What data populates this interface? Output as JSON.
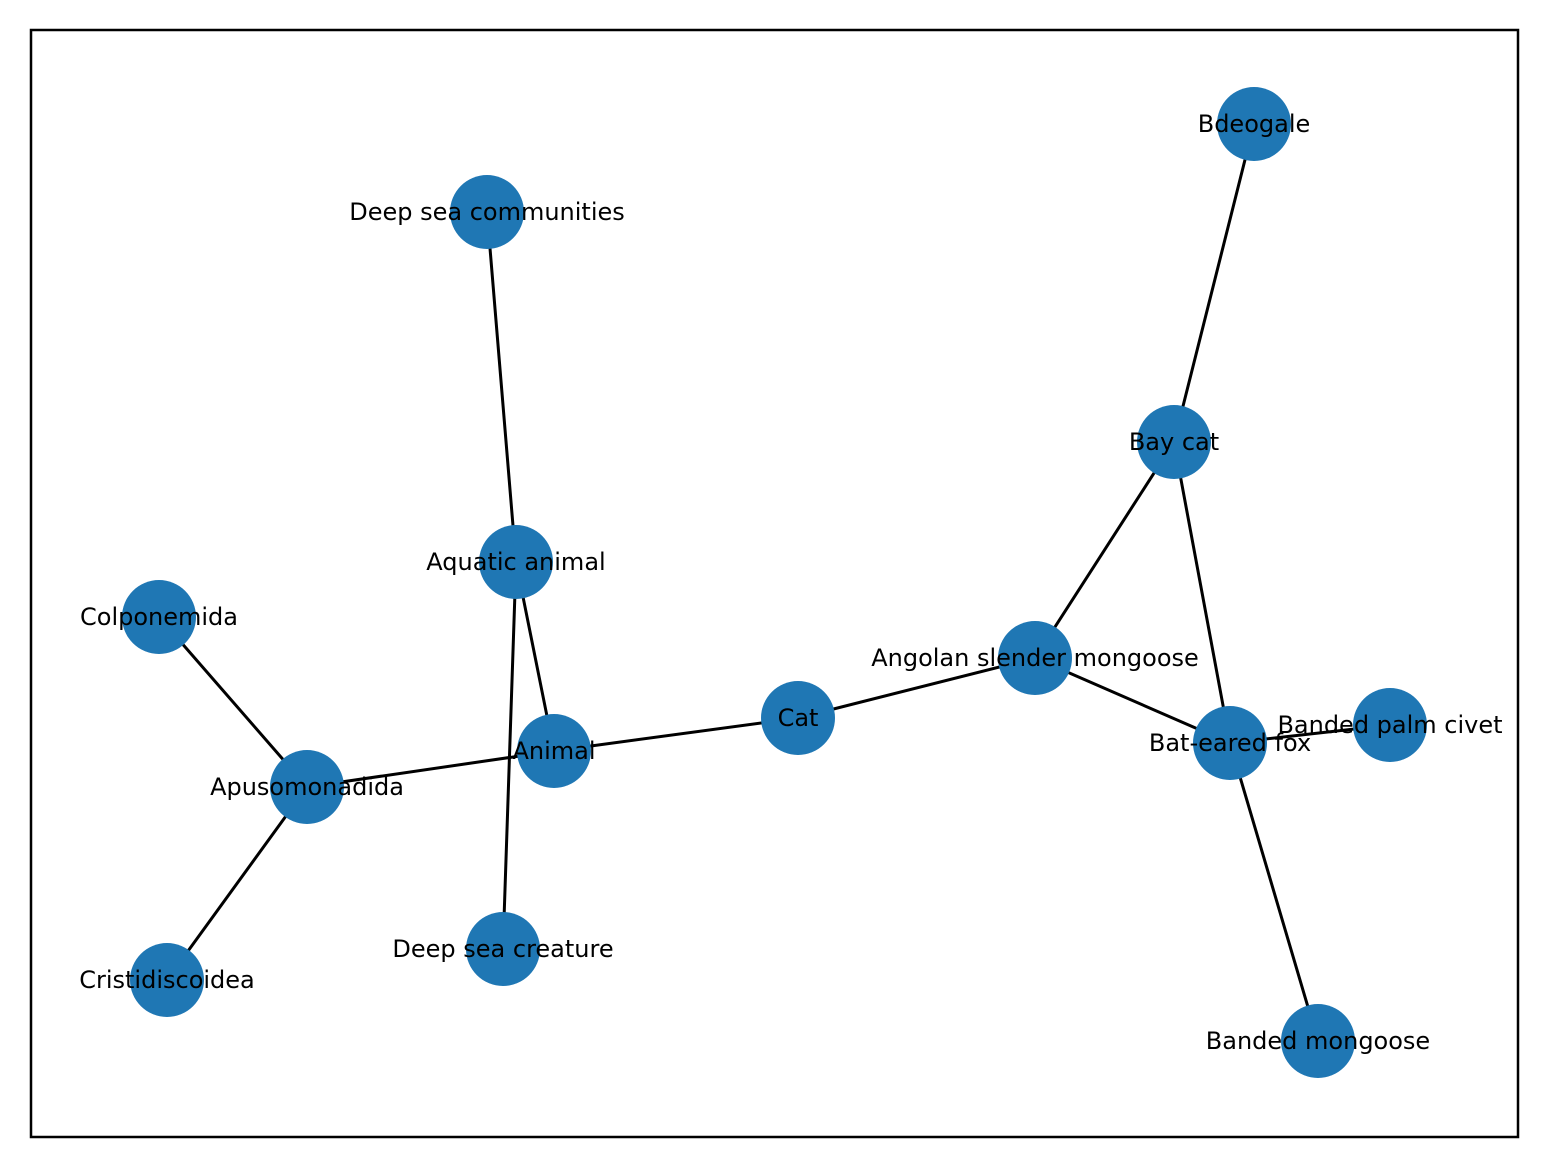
{
  "graph": {
    "title": "",
    "colors": {
      "node": "#1f77b4",
      "edge": "#000000",
      "label": "#000000",
      "frame": "#000000",
      "background": "#ffffff"
    },
    "nodes": [
      {
        "id": "bdeogale",
        "label": "Bdeogale"
      },
      {
        "id": "deep-sea-communities",
        "label": "Deep sea communities"
      },
      {
        "id": "bay-cat",
        "label": "Bay cat"
      },
      {
        "id": "aquatic-animal",
        "label": "Aquatic animal"
      },
      {
        "id": "colponemida",
        "label": "Colponemida"
      },
      {
        "id": "angolan-slender-mongoose",
        "label": "Angolan slender mongoose"
      },
      {
        "id": "cat",
        "label": "Cat"
      },
      {
        "id": "banded-palm-civet",
        "label": "Banded palm civet"
      },
      {
        "id": "bat-eared-fox",
        "label": "Bat-eared fox"
      },
      {
        "id": "animal",
        "label": "Animal"
      },
      {
        "id": "apusomonadida",
        "label": "Apusomonadida"
      },
      {
        "id": "deep-sea-creature",
        "label": "Deep sea creature"
      },
      {
        "id": "cristidiscoidea",
        "label": "Cristidiscoidea"
      },
      {
        "id": "banded-mongoose",
        "label": "Banded mongoose"
      }
    ],
    "edges": [
      {
        "source": "deep-sea-communities",
        "target": "aquatic-animal"
      },
      {
        "source": "aquatic-animal",
        "target": "animal"
      },
      {
        "source": "aquatic-animal",
        "target": "deep-sea-creature"
      },
      {
        "source": "colponemida",
        "target": "apusomonadida"
      },
      {
        "source": "apusomonadida",
        "target": "cristidiscoidea"
      },
      {
        "source": "apusomonadida",
        "target": "animal"
      },
      {
        "source": "animal",
        "target": "cat"
      },
      {
        "source": "cat",
        "target": "angolan-slender-mongoose"
      },
      {
        "source": "angolan-slender-mongoose",
        "target": "bay-cat"
      },
      {
        "source": "angolan-slender-mongoose",
        "target": "bat-eared-fox"
      },
      {
        "source": "bay-cat",
        "target": "bdeogale"
      },
      {
        "source": "bay-cat",
        "target": "bat-eared-fox"
      },
      {
        "source": "bat-eared-fox",
        "target": "banded-palm-civet"
      },
      {
        "source": "bat-eared-fox",
        "target": "banded-mongoose"
      }
    ]
  }
}
